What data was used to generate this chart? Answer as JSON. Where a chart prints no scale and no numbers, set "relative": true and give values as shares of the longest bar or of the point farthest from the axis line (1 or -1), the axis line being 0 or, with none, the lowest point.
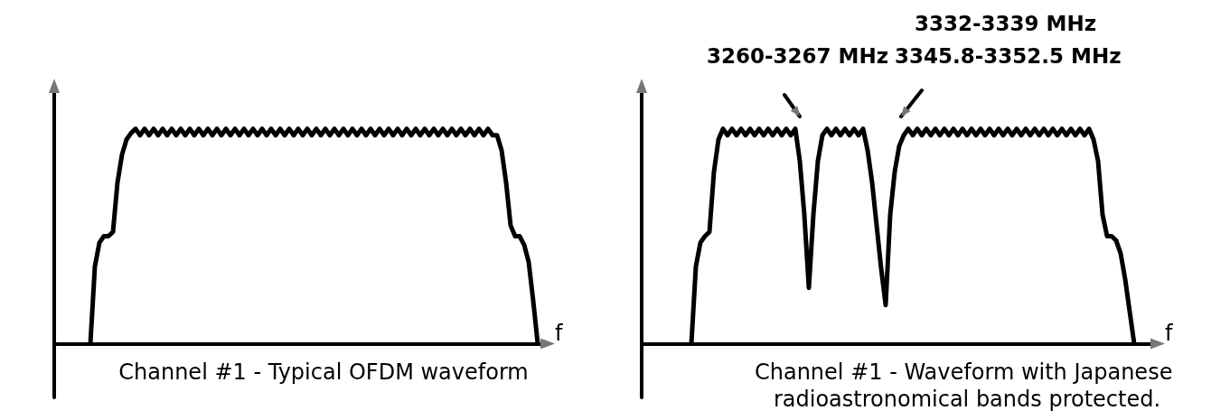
{
  "chart_data": [
    {
      "type": "line",
      "title": "Channel #1 - Typical OFDM waveform",
      "xlabel": "f",
      "relative": true,
      "grid": false,
      "marker": "none",
      "line_style": "solid",
      "categories": [
        null,
        null,
        null,
        null,
        null,
        null,
        null,
        null,
        null,
        null,
        null,
        null,
        null,
        null,
        null,
        null,
        null,
        null,
        null,
        null,
        null,
        null,
        null,
        null,
        null,
        null,
        null,
        null,
        null,
        null,
        null,
        null,
        null,
        null,
        null,
        null,
        null,
        null,
        null,
        null,
        null,
        null,
        null,
        null,
        null,
        null,
        null,
        null,
        null,
        null,
        null,
        null,
        null,
        null,
        null,
        null,
        null,
        null,
        null,
        null,
        null,
        null,
        null,
        null,
        null,
        null,
        null,
        null,
        null,
        null,
        null,
        null,
        null,
        null,
        null,
        null,
        null,
        null,
        null,
        null,
        null,
        null,
        null,
        null,
        null,
        null,
        null,
        null,
        null,
        null,
        null,
        null,
        null,
        null,
        null,
        null,
        null,
        null,
        null,
        null,
        null,
        null,
        null,
        null,
        null,
        null,
        null,
        null,
        null
      ],
      "series": [
        {
          "color": "#000000",
          "values": [
            null,
            null,
            null,
            null,
            null,
            null,
            null,
            null,
            0,
            0.36,
            0.47,
            0.5,
            0.5,
            0.52,
            0.75,
            0.88,
            0.95,
            0.98,
            1,
            0.97,
            1,
            0.97,
            1,
            0.97,
            1,
            0.97,
            1,
            0.97,
            1,
            0.97,
            1,
            0.97,
            1,
            0.97,
            1,
            0.97,
            1,
            0.97,
            1,
            0.97,
            1,
            0.97,
            1,
            0.97,
            1,
            0.97,
            1,
            0.97,
            1,
            0.97,
            1,
            0.97,
            1,
            0.97,
            1,
            0.97,
            1,
            0.97,
            1,
            0.97,
            1,
            0.97,
            1,
            0.97,
            1,
            0.97,
            1,
            0.97,
            1,
            0.97,
            1,
            0.97,
            1,
            0.97,
            1,
            0.97,
            1,
            0.97,
            1,
            0.97,
            1,
            0.97,
            1,
            0.97,
            1,
            0.97,
            1,
            0.97,
            1,
            0.97,
            1,
            0.97,
            1,
            0.97,
            1,
            0.97,
            1,
            0.97,
            0.97,
            0.9,
            0.75,
            0.55,
            0.5,
            0.5,
            0.46,
            0.38,
            0.2,
            0,
            null
          ]
        }
      ]
    },
    {
      "type": "line",
      "title": "Channel #1 - Waveform with Japanese radioastronomical bands protected.",
      "xlabel": "f",
      "relative": true,
      "grid": false,
      "marker": "none",
      "line_style": "solid",
      "annotations": [
        "3260-3267 MHz",
        "3332-3339 MHz",
        "3345.8-3352.5 MHz"
      ],
      "categories": [
        null,
        null,
        null,
        null,
        null,
        null,
        null,
        null,
        null,
        null,
        null,
        null,
        null,
        null,
        null,
        null,
        null,
        null,
        null,
        null,
        null,
        null,
        null,
        null,
        null,
        null,
        null,
        null,
        null,
        null,
        null,
        null,
        null,
        null,
        null,
        null,
        null,
        null,
        null,
        null,
        null,
        null,
        null,
        null,
        null,
        null,
        null,
        null,
        null,
        null,
        null,
        null,
        null,
        null,
        null,
        null,
        null,
        null,
        null,
        null,
        null,
        null,
        null,
        null,
        null,
        null,
        null,
        null,
        null,
        null,
        null,
        null,
        null,
        null,
        null,
        null,
        null,
        null,
        null,
        null,
        null,
        null,
        null,
        null,
        null,
        null,
        null,
        null,
        null,
        null,
        null,
        null,
        null,
        null,
        null,
        null,
        null,
        null,
        null,
        null,
        null,
        null,
        null,
        null,
        null,
        null,
        null,
        null,
        null,
        null,
        null,
        null,
        null,
        null
      ],
      "series": [
        {
          "color": "#000000",
          "values": [
            null,
            null,
            null,
            null,
            null,
            null,
            null,
            null,
            null,
            null,
            null,
            0,
            0.36,
            0.47,
            0.5,
            0.52,
            0.8,
            0.95,
            1,
            0.97,
            1,
            0.97,
            1,
            0.97,
            1,
            0.97,
            1,
            0.97,
            1,
            0.97,
            1,
            0.97,
            1,
            0.97,
            1,
            0.85,
            0.6,
            0.26,
            0.6,
            0.85,
            0.97,
            1,
            0.97,
            1,
            0.97,
            1,
            0.97,
            1,
            0.97,
            1,
            0.9,
            0.75,
            0.55,
            0.35,
            0.18,
            0.6,
            0.8,
            0.92,
            0.97,
            1,
            0.97,
            1,
            0.97,
            1,
            0.97,
            1,
            0.97,
            1,
            0.97,
            1,
            0.97,
            1,
            0.97,
            1,
            0.97,
            1,
            0.97,
            1,
            0.97,
            1,
            0.97,
            1,
            0.97,
            1,
            0.97,
            1,
            0.97,
            1,
            0.97,
            1,
            0.97,
            1,
            0.97,
            1,
            0.97,
            1,
            0.97,
            1,
            0.97,
            1,
            0.95,
            0.85,
            0.6,
            0.5,
            0.5,
            0.48,
            0.42,
            0.3,
            0.15,
            0,
            null,
            null,
            null,
            null
          ]
        }
      ]
    }
  ]
}
